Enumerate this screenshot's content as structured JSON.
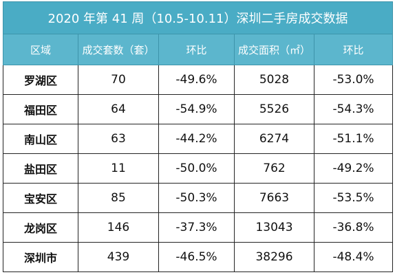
{
  "table": {
    "title": "2020 年第 41 周（10.5-10.11）深圳二手房成交数据",
    "header": [
      "区域",
      "成交套数（套）",
      "环比",
      "成交面积（㎡）",
      "环比"
    ],
    "rows": [
      [
        "罗湖区",
        "70",
        "-49.6%",
        "5028",
        "-53.0%"
      ],
      [
        "福田区",
        "64",
        "-54.9%",
        "5526",
        "-54.3%"
      ],
      [
        "南山区",
        "63",
        "-44.2%",
        "6274",
        "-51.1%"
      ],
      [
        "盐田区",
        "11",
        "-50.0%",
        "762",
        "-49.2%"
      ],
      [
        "宝安区",
        "85",
        "-50.3%",
        "7663",
        "-53.5%"
      ],
      [
        "龙岗区",
        "146",
        "-37.3%",
        "13043",
        "-36.8%"
      ],
      [
        "深圳市",
        "439",
        "-46.5%",
        "38296",
        "-48.4%"
      ]
    ]
  }
}
